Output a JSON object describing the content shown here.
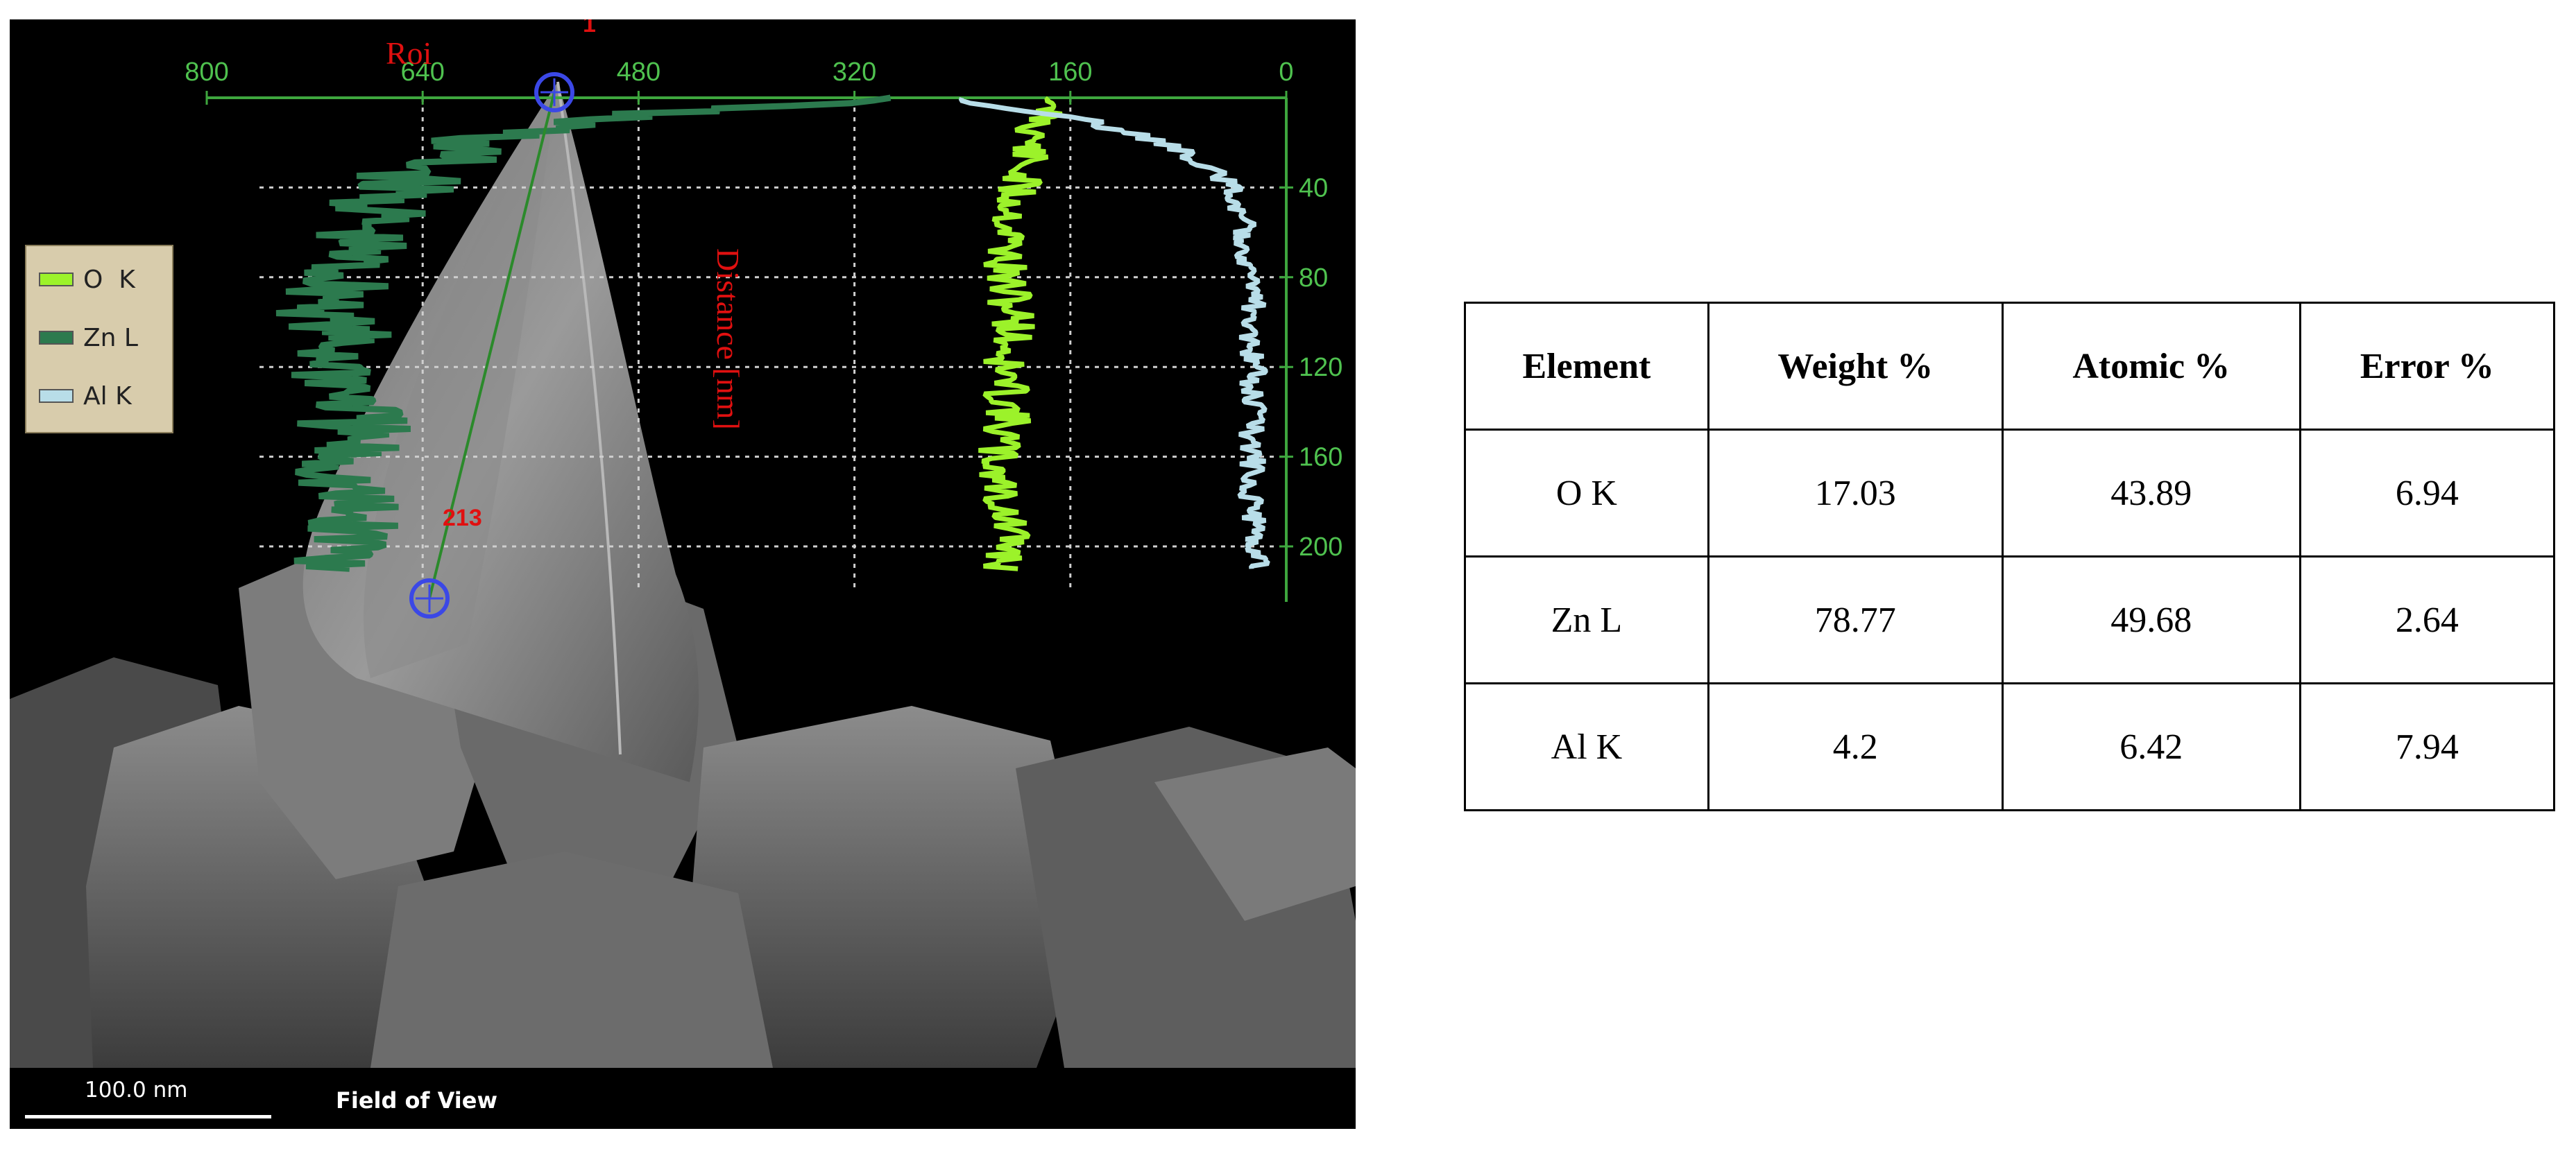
{
  "chart_data": {
    "type": "line",
    "title": "Roi",
    "roi_marker_start": "1",
    "roi_marker_end": "213",
    "ylabel": "Distance [nm]",
    "xlabel": "",
    "x_ticks": [
      "800",
      "640",
      "480",
      "320",
      "160",
      "0"
    ],
    "y_ticks": [
      "40",
      "80",
      "120",
      "160",
      "200"
    ],
    "xlim": [
      800,
      0
    ],
    "ylim": [
      0,
      210
    ],
    "legend_position": "left",
    "series": [
      {
        "name": "O  K",
        "color": "#9cf22a",
        "distance": [
          5,
          20,
          40,
          60,
          80,
          100,
          120,
          140,
          160,
          180,
          200,
          210
        ],
        "counts": [
          175,
          190,
          200,
          205,
          210,
          200,
          210,
          205,
          215,
          210,
          205,
          210
        ]
      },
      {
        "name": "Zn L",
        "color": "#2c7a4e",
        "distance": [
          2,
          5,
          10,
          20,
          40,
          60,
          80,
          100,
          120,
          140,
          160,
          180,
          200,
          210
        ],
        "counts": [
          300,
          440,
          520,
          610,
          660,
          690,
          700,
          710,
          700,
          690,
          700,
          700,
          690,
          695
        ]
      },
      {
        "name": "Al K",
        "color": "#b8dde8",
        "distance": [
          2,
          10,
          20,
          30,
          40,
          60,
          80,
          100,
          120,
          140,
          160,
          180,
          200,
          210
        ],
        "counts": [
          240,
          150,
          90,
          60,
          40,
          30,
          25,
          25,
          25,
          25,
          25,
          25,
          20,
          20
        ]
      }
    ]
  },
  "image": {
    "scale_bar": "100.0 nm",
    "field_of_view": "Field of View"
  },
  "table": {
    "headers": [
      "Element",
      "Weight %",
      "Atomic %",
      "Error %"
    ],
    "rows": [
      [
        "O K",
        "17.03",
        "43.89",
        "6.94"
      ],
      [
        "Zn L",
        "78.77",
        "49.68",
        "2.64"
      ],
      [
        "Al K",
        "4.2",
        "6.42",
        "7.94"
      ]
    ]
  }
}
